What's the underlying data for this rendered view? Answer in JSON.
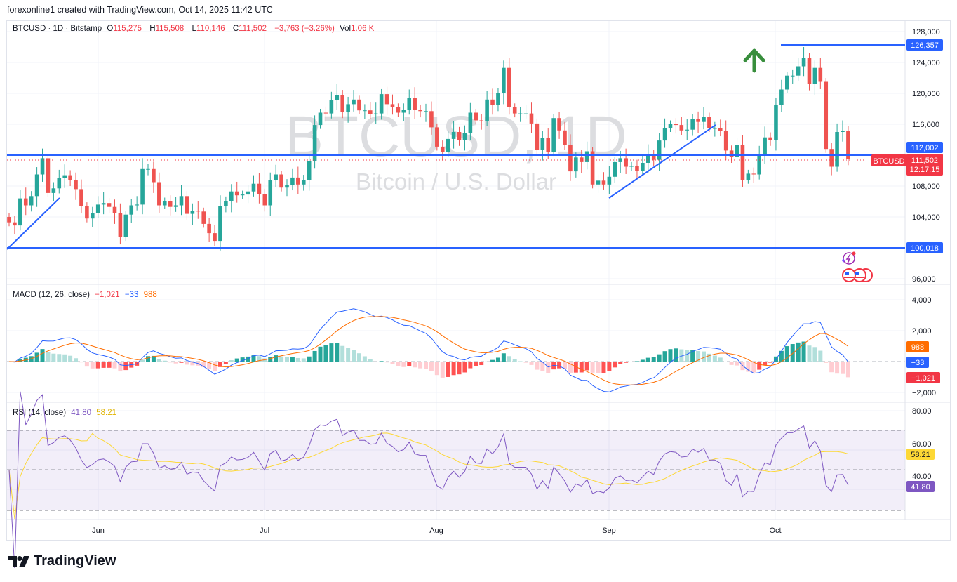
{
  "credit": "forexonline1 created with TradingView.com, Oct 14, 2025 11:42 UTC",
  "header": {
    "symbol": "BTCUSD · 1D · Bitstamp",
    "open_label": "O",
    "open": "115,275",
    "high_label": "H",
    "high": "115,508",
    "low_label": "L",
    "low": "110,146",
    "close_label": "C",
    "close": "111,502",
    "change": "−3,763 (−3.26%)",
    "vol_label": "Vol",
    "vol": "1.06 K"
  },
  "watermark": {
    "symbol": "BTCUSD, 1D",
    "description": "Bitcoin / U.S. Dollar"
  },
  "price_tags": {
    "resistance_high": "126,357",
    "level_upper": "112,002",
    "level_lower": "100,018",
    "symbol_tag": "BTCUSD",
    "last_price": "111,502",
    "countdown": "12:17:15"
  },
  "macd_legend": {
    "title": "MACD (12, 26, close)",
    "hist": "−1,021",
    "macd": "−33",
    "signal": "988"
  },
  "rsi_legend": {
    "title": "RSI (14, close)",
    "rsi": "41.80",
    "ma": "58.21"
  },
  "brand": "TradingView",
  "colors": {
    "up": "#26a69a",
    "down": "#ef5350",
    "drawing": "#2962ff",
    "macd": "#2962ff",
    "signal": "#ff6d00",
    "rsi": "#7e57c2",
    "rsi_ma": "#fdd835",
    "arrow": "#388e3c"
  },
  "chart_data": [
    {
      "type": "candlestick",
      "x_ticks": [
        "Jun",
        "Jul",
        "Aug",
        "Sep",
        "Oct"
      ],
      "y_ticks": [
        "128,000",
        "124,000",
        "120,000",
        "116,000",
        "108,000",
        "104,000",
        "96,000"
      ],
      "ylim": [
        96000,
        128000
      ],
      "first_open": 104000,
      "closes": [
        103300,
        102900,
        106400,
        105500,
        106700,
        109500,
        111600,
        107100,
        107700,
        109000,
        109400,
        108800,
        107600,
        105400,
        103800,
        104500,
        105600,
        105800,
        105300,
        104500,
        101400,
        104300,
        105500,
        105600,
        110200,
        110200,
        108500,
        105500,
        106000,
        105300,
        105500,
        106700,
        104400,
        104800,
        104700,
        103100,
        101900,
        100900,
        105400,
        106000,
        107300,
        106800,
        106900,
        107300,
        108300,
        107000,
        105500,
        108800,
        109500,
        107800,
        108100,
        109100,
        108200,
        108800,
        111200,
        115900,
        117500,
        117400,
        119100,
        119800,
        117600,
        118600,
        119200,
        117800,
        117800,
        117300,
        117400,
        119900,
        118600,
        118200,
        117500,
        117900,
        119400,
        117900,
        117700,
        117700,
        115600,
        113100,
        112400,
        114100,
        115000,
        114000,
        114900,
        117500,
        116500,
        116400,
        119200,
        118500,
        120000,
        123300,
        118200,
        117400,
        117400,
        117400,
        116100,
        112700,
        114200,
        112400,
        116800,
        115200,
        113300,
        109900,
        111700,
        111100,
        112500,
        108200,
        108700,
        108200,
        109200,
        111100,
        111600,
        110500,
        110600,
        110000,
        111000,
        112000,
        111400,
        113900,
        115500,
        116000,
        115900,
        115200,
        115300,
        116700,
        116300,
        117000,
        115500,
        115500,
        115100,
        112600,
        111800,
        113300,
        108800,
        109600,
        109500,
        112100,
        114300,
        114000,
        118500,
        120500,
        122300,
        122300,
        123500,
        124600,
        121200,
        123300,
        121500,
        112800,
        110500,
        115000,
        115100,
        111502
      ],
      "horizontal_levels": [
        112002,
        100018,
        126357
      ]
    },
    {
      "type": "line",
      "name": "MACD (12, 26, close)",
      "y_ticks": [
        "4,000",
        "2,000",
        "−2,000"
      ],
      "ylim": [
        -2500,
        5000
      ],
      "last": {
        "histogram": -1021,
        "macd": -33,
        "signal": 988
      }
    },
    {
      "type": "line",
      "name": "RSI (14, close)",
      "y_ticks": [
        "80.00",
        "60.00",
        "40.00"
      ],
      "bands": [
        30,
        50,
        70
      ],
      "last": {
        "rsi": 41.8,
        "ma": 58.21
      }
    }
  ]
}
